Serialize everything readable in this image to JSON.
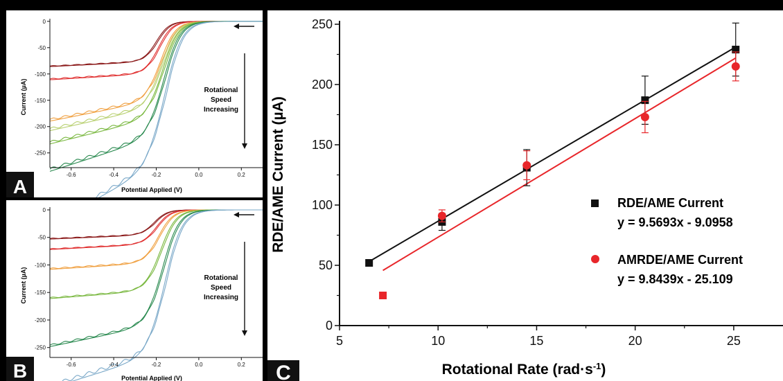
{
  "chart_data": [
    {
      "panel": "A",
      "type": "line",
      "xlabel": "Potential Applied (V)",
      "ylabel": "Current (µA)",
      "xlim": [
        -0.7,
        0.3
      ],
      "ylim": [
        -278,
        5
      ],
      "x_ticks": [
        -0.6,
        -0.4,
        -0.2,
        0.0,
        0.2
      ],
      "y_ticks": [
        0,
        -50,
        -100,
        -150,
        -200,
        -250
      ],
      "annotation": [
        "Rotational",
        "Speed",
        "Increasing"
      ],
      "series": [
        {
          "color": "#8b1a1a",
          "limiting_current": -77,
          "slope": 10,
          "half_wave": -0.2,
          "width": 0.03,
          "hysteresis": 2
        },
        {
          "color": "#e03030",
          "limiting_current": -100,
          "slope": 12,
          "half_wave": -0.19,
          "width": 0.032,
          "hysteresis": 3
        },
        {
          "color": "#f0a040",
          "limiting_current": -152,
          "slope": 40,
          "half_wave": -0.18,
          "width": 0.035,
          "hysteresis": 6
        },
        {
          "color": "#b8d070",
          "limiting_current": -165,
          "slope": 45,
          "half_wave": -0.175,
          "width": 0.036,
          "hysteresis": 7
        },
        {
          "color": "#7ab840",
          "limiting_current": -185,
          "slope": 50,
          "half_wave": -0.17,
          "width": 0.037,
          "hysteresis": 7
        },
        {
          "color": "#2a8a50",
          "limiting_current": -222,
          "slope": 65,
          "half_wave": -0.165,
          "width": 0.038,
          "hysteresis": 8
        },
        {
          "color": "#7aa8c8",
          "limiting_current": -278,
          "slope": 110,
          "half_wave": -0.16,
          "width": 0.04,
          "hysteresis": 10
        }
      ]
    },
    {
      "panel": "B",
      "type": "line",
      "xlabel": "Potential Applied (V)",
      "ylabel": "Current (µA)",
      "xlim": [
        -0.7,
        0.3
      ],
      "ylim": [
        -268,
        5
      ],
      "x_ticks": [
        -0.6,
        -0.4,
        -0.2,
        0.0,
        0.2
      ],
      "y_ticks": [
        0,
        -50,
        -100,
        -150,
        -200,
        -250
      ],
      "annotation": [
        "Rotational",
        "Speed",
        "Increasing"
      ],
      "series": [
        {
          "color": "#8b1a1a",
          "limiting_current": -46,
          "slope": 8,
          "half_wave": -0.21,
          "width": 0.03,
          "hysteresis": 2
        },
        {
          "color": "#e03030",
          "limiting_current": -63,
          "slope": 10,
          "half_wave": -0.2,
          "width": 0.032,
          "hysteresis": 2
        },
        {
          "color": "#f0a040",
          "limiting_current": -97,
          "slope": 12,
          "half_wave": -0.19,
          "width": 0.034,
          "hysteresis": 3
        },
        {
          "color": "#7ab840",
          "limiting_current": -147,
          "slope": 15,
          "half_wave": -0.18,
          "width": 0.036,
          "hysteresis": 3
        },
        {
          "color": "#2a8a50",
          "limiting_current": -210,
          "slope": 40,
          "half_wave": -0.17,
          "width": 0.038,
          "hysteresis": 5
        },
        {
          "color": "#7aa8c8",
          "limiting_current": -265,
          "slope": 60,
          "half_wave": -0.16,
          "width": 0.04,
          "hysteresis": 10
        }
      ]
    },
    {
      "panel": "C",
      "type": "scatter",
      "xlabel": "Rotational Rate (rad·s",
      "xlabel_sup": "-1",
      "xlabel_tail": ")",
      "ylabel": "RDE/AME Current (µA)",
      "xlim": [
        5,
        27.5
      ],
      "ylim": [
        0,
        250
      ],
      "x_ticks": [
        5,
        10,
        15,
        20,
        25
      ],
      "y_ticks": [
        0,
        50,
        100,
        150,
        200,
        250
      ],
      "series": [
        {
          "name": "RDE/AME Current",
          "equation": "y = 9.5693x - 9.0958",
          "color": "#111111",
          "marker": "square",
          "x": [
            6.5,
            10.2,
            14.5,
            20.5,
            25.1
          ],
          "y": [
            52,
            86,
            131,
            187,
            229
          ],
          "err": [
            0,
            7,
            15,
            20,
            22
          ],
          "fit": {
            "slope": 9.5693,
            "intercept": -9.0958,
            "x_range": [
              6.5,
              25.1
            ]
          }
        },
        {
          "name": "AMRDE/AME Current",
          "equation": "y = 9.8439x - 25.109",
          "color": "#e8262a",
          "marker": "circle",
          "x": [
            7.2,
            10.2,
            14.5,
            20.5,
            25.1
          ],
          "y": [
            25,
            91,
            133,
            173,
            215
          ],
          "err": [
            2,
            5,
            12,
            13,
            12
          ],
          "fit": {
            "slope": 9.8439,
            "intercept": -25.109,
            "x_range": [
              7.2,
              25.1
            ]
          }
        }
      ]
    }
  ],
  "panel_labels": [
    "A",
    "B",
    "C"
  ]
}
